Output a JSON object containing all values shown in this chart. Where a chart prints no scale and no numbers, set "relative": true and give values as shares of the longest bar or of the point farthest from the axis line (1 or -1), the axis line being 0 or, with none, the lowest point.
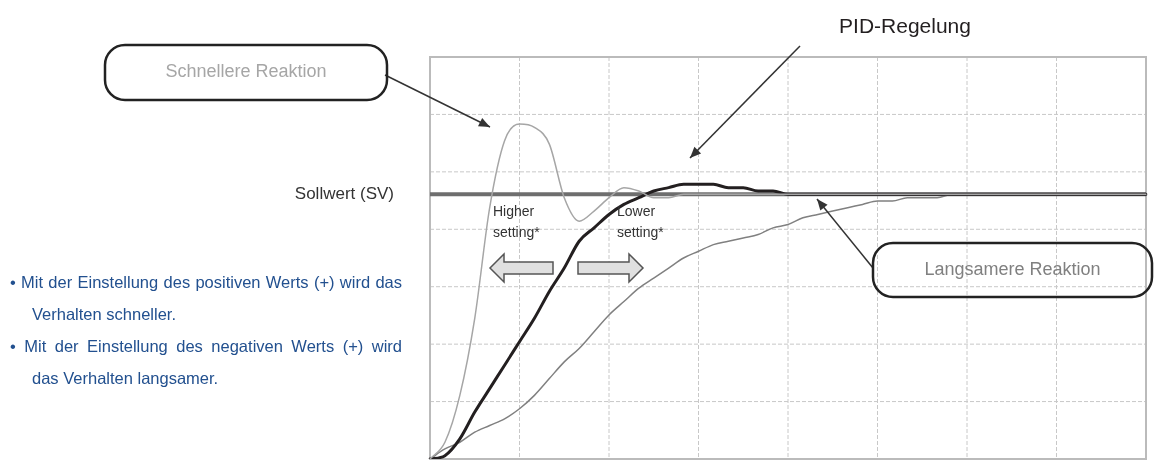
{
  "chart_data": {
    "type": "line",
    "relative": true,
    "grid": true,
    "legend": false,
    "marker": "none",
    "line_style": "solid",
    "categories": [
      null,
      null,
      null,
      null,
      null,
      null,
      null,
      null,
      null,
      null,
      null,
      null,
      null,
      null,
      null,
      null,
      null,
      null,
      null,
      null,
      null,
      null,
      null,
      null,
      null,
      null,
      null,
      null,
      null,
      null,
      null,
      null,
      null,
      null,
      null,
      null,
      null,
      null,
      null,
      null,
      null,
      null,
      null,
      null,
      null,
      null,
      null,
      null,
      null
    ],
    "series": [
      {
        "name": "Schnellere Reaktion",
        "color": "#a6a6a6",
        "values": [
          0,
          0.05,
          0.19,
          0.42,
          0.75,
          0.95,
          1.0,
          0.99,
          0.94,
          0.78,
          0.71,
          0.74,
          0.78,
          0.81,
          0.8,
          0.78,
          0.78,
          0.79,
          0.79,
          0.79,
          0.79,
          0.79,
          0.79,
          0.79,
          0.79,
          0.79,
          0.79,
          0.79,
          0.79,
          0.79,
          0.79,
          0.79,
          0.79,
          0.79,
          0.79,
          0.79,
          0.79,
          0.79,
          0.79,
          0.79,
          0.79,
          0.79,
          0.79,
          0.79,
          0.79,
          0.79,
          0.79,
          0.79,
          0.79
        ]
      },
      {
        "name": "PID-Regelung",
        "color": "#231f20",
        "values": [
          0,
          0.01,
          0.06,
          0.14,
          0.21,
          0.28,
          0.35,
          0.42,
          0.5,
          0.57,
          0.65,
          0.69,
          0.73,
          0.76,
          0.78,
          0.8,
          0.81,
          0.82,
          0.82,
          0.82,
          0.81,
          0.81,
          0.8,
          0.8,
          0.79,
          0.79,
          0.79,
          0.79,
          0.79,
          0.79,
          0.79,
          0.79,
          0.79,
          0.79,
          0.79,
          0.79,
          0.79,
          0.79,
          0.79,
          0.79,
          0.79,
          0.79,
          0.79,
          0.79,
          0.79,
          0.79,
          0.79,
          0.79,
          0.79
        ]
      },
      {
        "name": "Langsamere Reaktion",
        "color": "#808080",
        "values": [
          0,
          0.03,
          0.05,
          0.08,
          0.1,
          0.12,
          0.15,
          0.19,
          0.24,
          0.29,
          0.33,
          0.38,
          0.43,
          0.47,
          0.51,
          0.54,
          0.57,
          0.6,
          0.62,
          0.64,
          0.65,
          0.66,
          0.67,
          0.69,
          0.7,
          0.72,
          0.73,
          0.74,
          0.75,
          0.76,
          0.77,
          0.77,
          0.78,
          0.78,
          0.78,
          0.79,
          0.79,
          0.79,
          0.79,
          0.79,
          0.79,
          0.79,
          0.79,
          0.79,
          0.79,
          0.79,
          0.79,
          0.79,
          0.79
        ]
      }
    ],
    "ref_lines": [
      {
        "axis": "y",
        "value": 0.79,
        "label": "Sollwert (SV)",
        "color": "#6e6e6e"
      }
    ],
    "annotations": [
      "Higher setting*",
      "Lower setting*",
      "• Mit der Einstellung des positiven Werts (+) wird das Verhalten schneller.",
      "• Mit der Einstellung des negativen Werts (+) wird das Verhalten langsamer."
    ]
  }
}
